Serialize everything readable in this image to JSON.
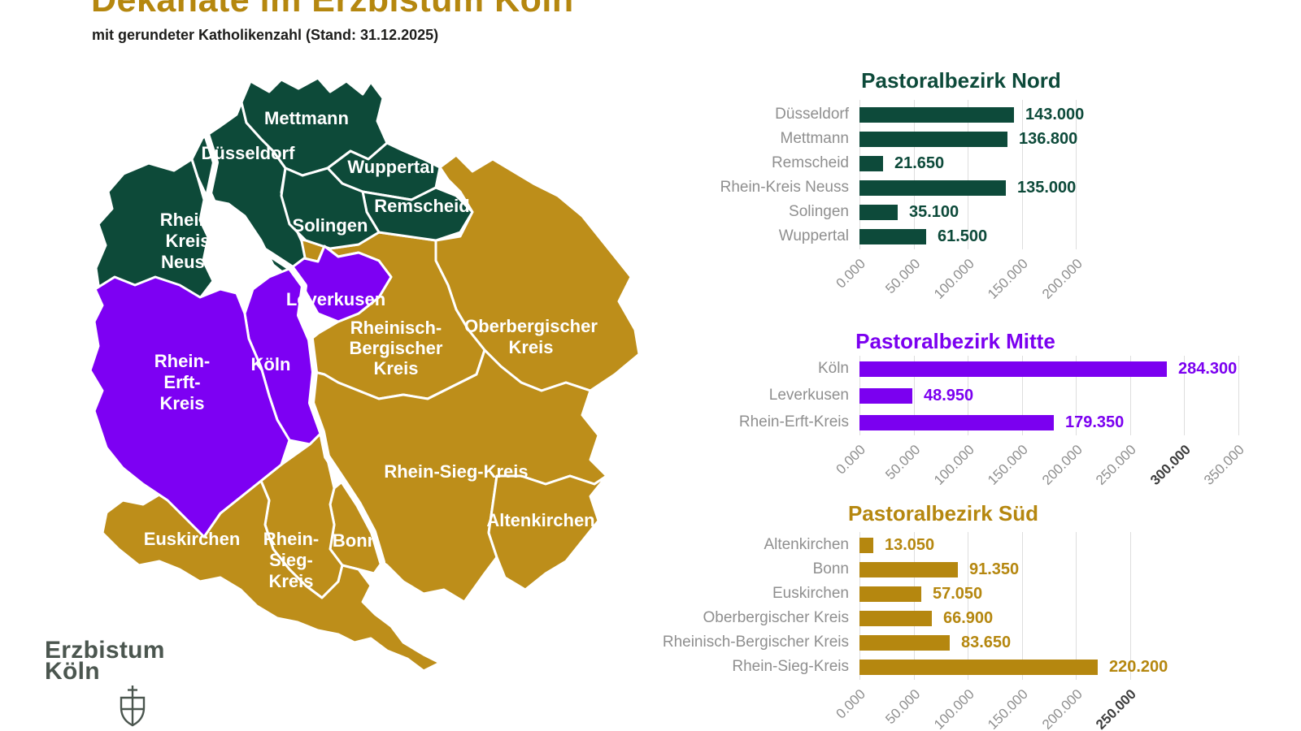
{
  "header": {
    "title": "Dekanate im Erzbistum Köln",
    "subtitle": "mit gerundeter Katholikenzahl (Stand: 31.12.2025)",
    "title_color": "#b5870f"
  },
  "logo": {
    "line1": "Erzbistum",
    "line2": "Köln",
    "color": "#4b564f"
  },
  "map": {
    "label_color": "#ffffff",
    "district_colors": {
      "nord": "#0d4a39",
      "mitte": "#7d00f3",
      "sued": "#bd8e1a"
    },
    "river_color": "#ffffff",
    "region_labels": {
      "mettmann": "Mettmann",
      "duesseldorf": "Düsseldorf",
      "wuppertal": "Wuppertal",
      "remscheid": "Remscheid",
      "solingen": "Solingen",
      "rhein_kreis_neuss_line1": "Rhein-",
      "rhein_kreis_neuss_line2": "Kreis",
      "rhein_kreis_neuss_line3": "Neuss",
      "leverkusen": "Leverkusen",
      "koeln": "Köln",
      "rhein_erft_line1": "Rhein-",
      "rhein_erft_line2": "Erft-",
      "rhein_erft_line3": "Kreis",
      "rheinisch_bergischer_line1": "Rheinisch-",
      "rheinisch_bergischer_line2": "Bergischer",
      "rheinisch_bergischer_line3": "Kreis",
      "oberbergischer_line1": "Oberbergischer",
      "oberbergischer_line2": "Kreis",
      "rhein_sieg": "Rhein-Sieg-Kreis",
      "altenkirchen": "Altenkirchen",
      "bonn": "Bonn",
      "rhein_sieg_west_line1": "Rhein-",
      "rhein_sieg_west_line2": "Sieg-",
      "rhein_sieg_west_line3": "Kreis",
      "euskirchen": "Euskirchen"
    }
  },
  "chart_data": [
    {
      "type": "bar",
      "orientation": "horizontal",
      "title": "Pastoralbezirk Nord",
      "color": "#0d4a3a",
      "categories": [
        "Düsseldorf",
        "Mettmann",
        "Remscheid",
        "Rhein-Kreis Neuss",
        "Solingen",
        "Wuppertal"
      ],
      "values": [
        143000,
        136800,
        21650,
        135000,
        35100,
        61500
      ],
      "value_labels": [
        "143.000",
        "136.800",
        "21.650",
        "135.000",
        "35.100",
        "61.500"
      ],
      "xlim": [
        0,
        200000
      ],
      "tick_step": 50000,
      "tick_labels": [
        "0.000",
        "50.000",
        "100.000",
        "150.000",
        "200.000"
      ],
      "emphasized_tick": "",
      "grid": true,
      "legend": "none"
    },
    {
      "type": "bar",
      "orientation": "horizontal",
      "title": "Pastoralbezirk Mitte",
      "color": "#7b00f0",
      "categories": [
        "Köln",
        "Leverkusen",
        "Rhein-Erft-Kreis"
      ],
      "values": [
        284300,
        48950,
        179350
      ],
      "value_labels": [
        "284.300",
        "48.950",
        "179.350"
      ],
      "xlim": [
        0,
        350000
      ],
      "tick_step": 50000,
      "tick_labels": [
        "0.000",
        "50.000",
        "100.000",
        "150.000",
        "200.000",
        "250.000",
        "300.000",
        "350.000"
      ],
      "emphasized_tick": "300.000",
      "grid": true,
      "legend": "none"
    },
    {
      "type": "bar",
      "orientation": "horizontal",
      "title": "Pastoralbezirk Süd",
      "color": "#b5870f",
      "categories": [
        "Altenkirchen",
        "Bonn",
        "Euskirchen",
        "Oberbergischer Kreis",
        "Rheinisch-Bergischer Kreis",
        "Rhein-Sieg-Kreis"
      ],
      "values": [
        13050,
        91350,
        57050,
        66900,
        83650,
        220200
      ],
      "value_labels": [
        "13.050",
        "91.350",
        "57.050",
        "66.900",
        "83.650",
        "220.200"
      ],
      "xlim": [
        0,
        250000
      ],
      "tick_step": 50000,
      "tick_labels": [
        "0.000",
        "50.000",
        "100.000",
        "150.000",
        "200.000",
        "250.000"
      ],
      "emphasized_tick": "250.000",
      "grid": true,
      "legend": "none"
    }
  ]
}
